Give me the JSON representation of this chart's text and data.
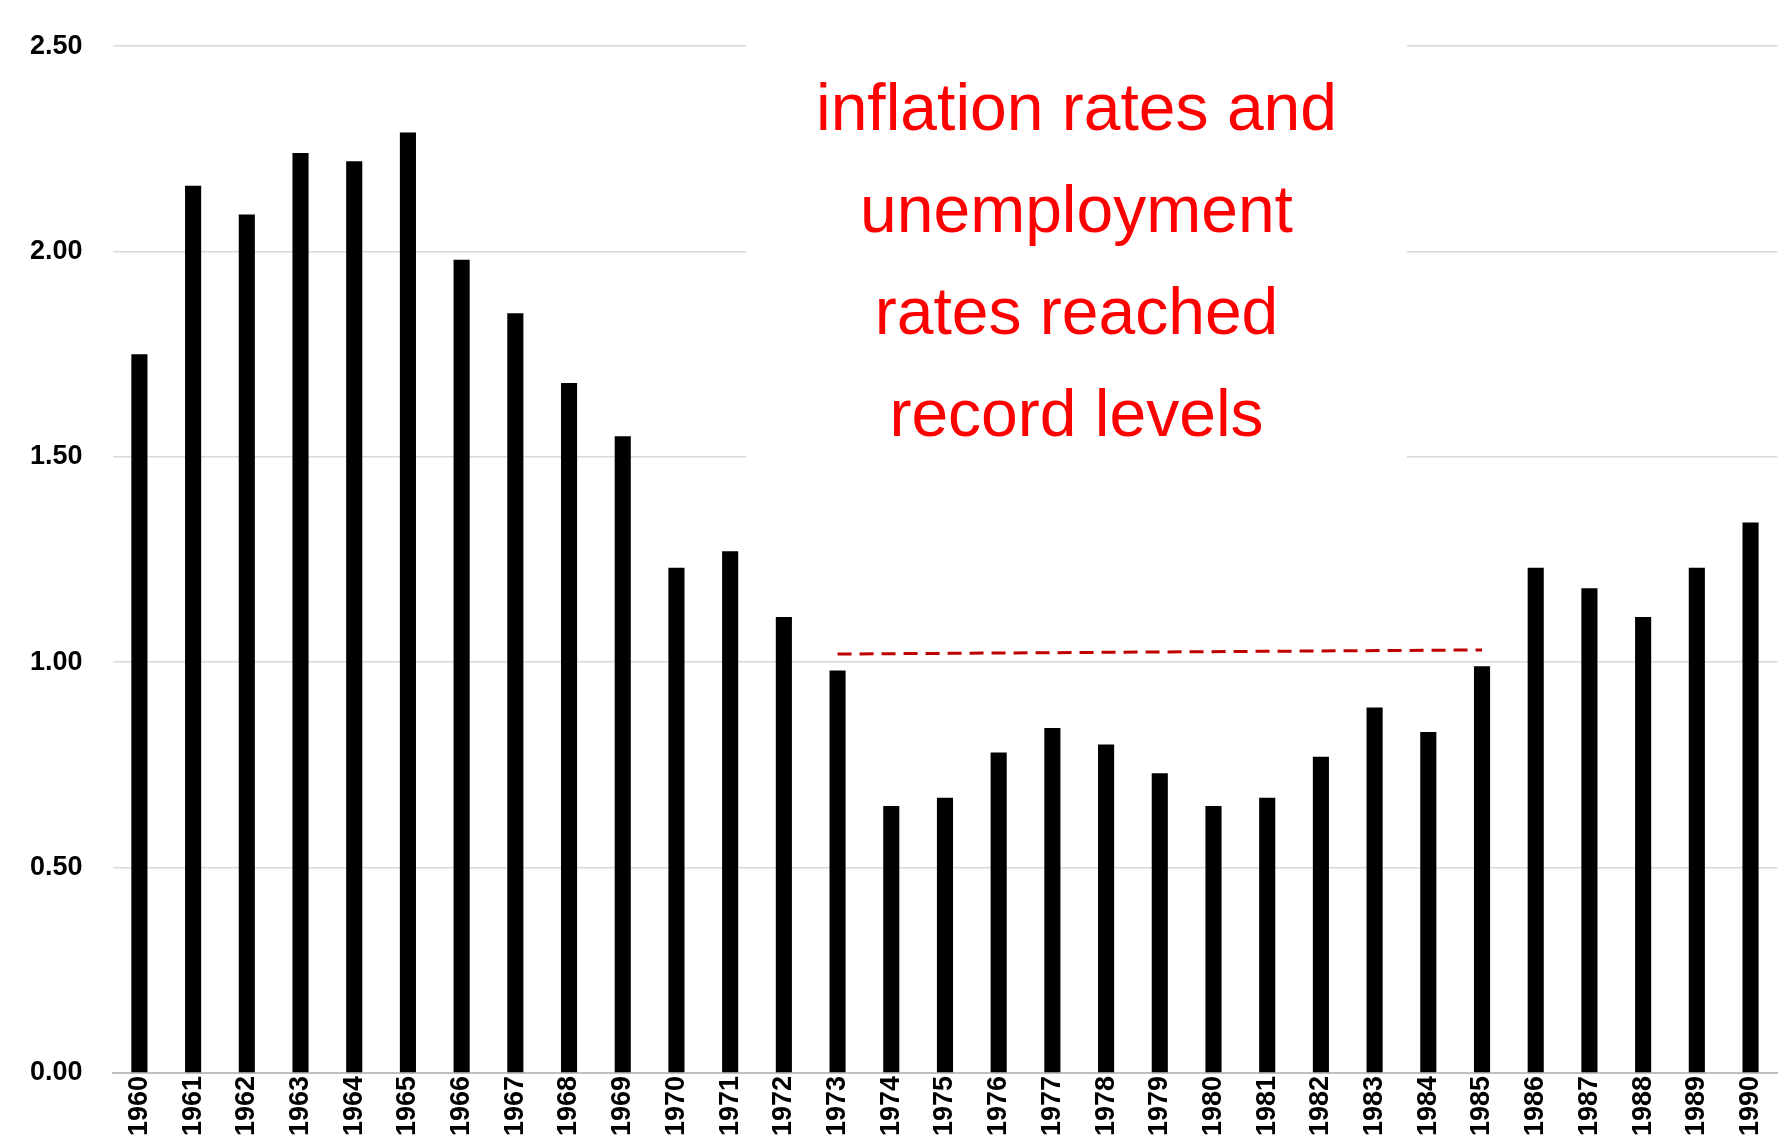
{
  "chart_data": {
    "type": "bar",
    "categories": [
      "1960",
      "1961",
      "1962",
      "1963",
      "1964",
      "1965",
      "1966",
      "1967",
      "1968",
      "1969",
      "1970",
      "1971",
      "1972",
      "1973",
      "1974",
      "1975",
      "1976",
      "1977",
      "1978",
      "1979",
      "1980",
      "1981",
      "1982",
      "1983",
      "1984",
      "1985",
      "1986",
      "1987",
      "1988",
      "1989",
      "1990"
    ],
    "series": [
      {
        "color": "#000000",
        "values": [
          1.75,
          2.16,
          2.09,
          2.24,
          2.22,
          2.29,
          1.98,
          1.85,
          1.68,
          1.55,
          1.23,
          1.27,
          1.11,
          0.98,
          0.65,
          0.67,
          0.78,
          0.84,
          0.8,
          0.73,
          0.65,
          0.67,
          0.77,
          0.89,
          0.83,
          0.99,
          1.23,
          1.18,
          1.11,
          1.23,
          1.34
        ]
      },
      {
        "type": "line",
        "color": "#c00000",
        "line_style": "dashed",
        "marker": "none",
        "values": [
          null,
          null,
          null,
          null,
          null,
          null,
          null,
          null,
          null,
          null,
          null,
          null,
          null,
          1.02,
          null,
          null,
          null,
          null,
          null,
          null,
          null,
          null,
          null,
          null,
          null,
          1.03,
          null,
          null,
          null,
          null,
          null
        ]
      }
    ],
    "ylim": [
      0,
      2.5
    ],
    "yticks": [
      {
        "value": 0,
        "label": "0.00"
      },
      {
        "value": 0.5,
        "label": "0.50"
      },
      {
        "value": 1,
        "label": "1.00"
      },
      {
        "value": 1.5,
        "label": "1.50"
      },
      {
        "value": 2,
        "label": "2.00"
      },
      {
        "value": 2.5,
        "label": "2.50"
      }
    ],
    "grid": "y",
    "legend": false,
    "annotations": [
      "inflation rates and unemployment rates reached record levels"
    ]
  }
}
